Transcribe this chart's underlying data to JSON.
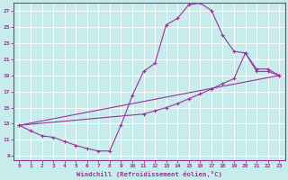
{
  "xlabel": "Windchill (Refroidissement éolien,°C)",
  "bg_color": "#c8ecec",
  "grid_color": "#b0d4d4",
  "line_color": "#993399",
  "xlim": [
    -0.5,
    23.5
  ],
  "ylim": [
    8.5,
    28.0
  ],
  "xticks": [
    0,
    1,
    2,
    3,
    4,
    5,
    6,
    7,
    8,
    9,
    10,
    11,
    12,
    13,
    14,
    15,
    16,
    17,
    18,
    19,
    20,
    21,
    22,
    23
  ],
  "yticks": [
    9,
    11,
    13,
    15,
    17,
    19,
    21,
    23,
    25,
    27
  ],
  "line1_x": [
    0,
    1,
    2,
    3,
    4,
    5,
    6,
    7,
    8,
    9,
    10,
    11,
    12,
    13,
    14,
    15,
    16,
    17,
    18,
    19,
    20,
    21,
    22,
    23
  ],
  "line1_y": [
    12.8,
    12.1,
    11.5,
    11.3,
    10.8,
    10.3,
    9.9,
    9.6,
    9.6,
    12.8,
    16.5,
    19.5,
    20.5,
    25.3,
    26.1,
    27.8,
    28.0,
    27.1,
    24.0,
    22.0,
    21.8,
    19.8,
    19.8,
    19.0
  ],
  "line2_x": [
    0,
    11,
    12,
    13,
    14,
    15,
    16,
    17,
    18,
    19,
    20,
    21,
    22,
    23
  ],
  "line2_y": [
    12.8,
    14.2,
    14.6,
    15.0,
    15.5,
    16.1,
    16.7,
    17.3,
    18.0,
    18.6,
    21.8,
    19.5,
    19.5,
    19.0
  ],
  "line3_x": [
    0,
    23
  ],
  "line3_y": [
    12.8,
    19.0
  ]
}
